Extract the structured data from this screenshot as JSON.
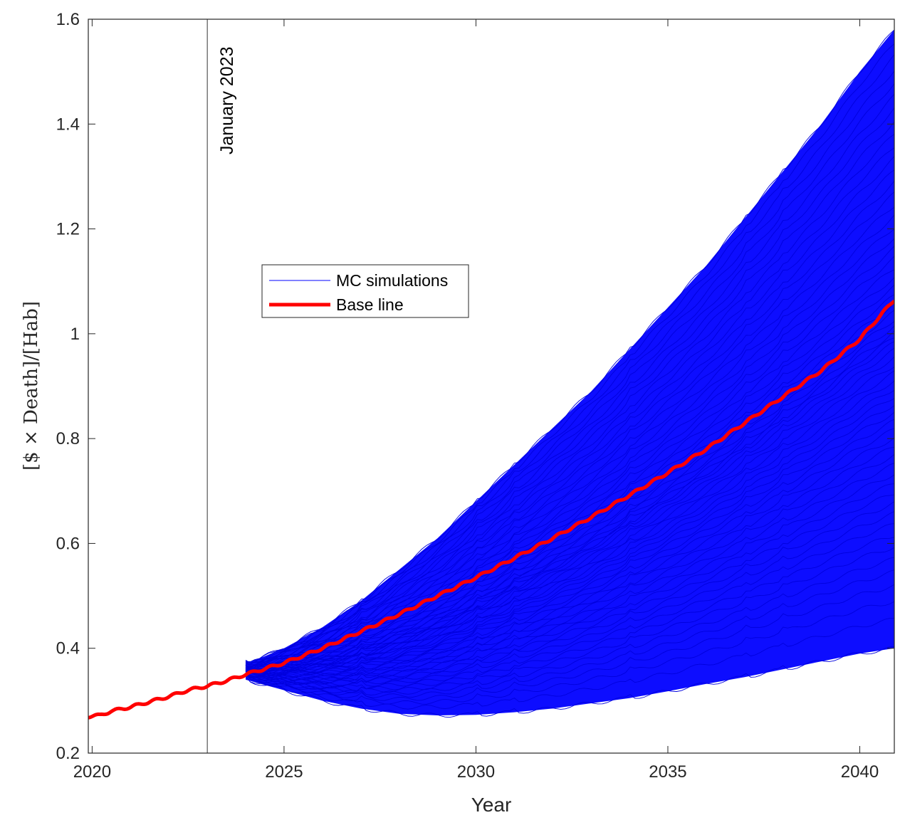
{
  "chart_data": {
    "type": "line",
    "title": "",
    "xlabel": "Year",
    "ylabel": "[$ × Death]/[Hab]",
    "xlim": [
      2019.9,
      2040.9
    ],
    "ylim": [
      0.2,
      1.6
    ],
    "x_ticks": [
      2020,
      2025,
      2030,
      2035,
      2040
    ],
    "x_tick_labels": [
      "2020",
      "2025",
      "2030",
      "2035",
      "2040"
    ],
    "y_ticks": [
      0.2,
      0.4,
      0.6,
      0.8,
      1.0,
      1.2,
      1.4,
      1.6
    ],
    "y_tick_labels": [
      "0.2",
      "0.4",
      "0.6",
      "0.8",
      "1",
      "1.2",
      "1.4",
      "1.6"
    ],
    "grid": false,
    "legend_position": "upper-left-center",
    "annotation": {
      "text": "January 2023",
      "x": 2023.0
    },
    "series": [
      {
        "name": "MC simulations",
        "color": "#0000ff",
        "kind": "envelope",
        "x": [
          2024.0,
          2025,
          2026,
          2027,
          2028,
          2029,
          2030,
          2031,
          2032,
          2033,
          2034,
          2035,
          2036,
          2037,
          2038,
          2039,
          2040,
          2040.9
        ],
        "upper": [
          0.37,
          0.4,
          0.44,
          0.49,
          0.55,
          0.61,
          0.68,
          0.75,
          0.82,
          0.89,
          0.97,
          1.05,
          1.13,
          1.22,
          1.31,
          1.4,
          1.5,
          1.58
        ],
        "lower": [
          0.34,
          0.32,
          0.3,
          0.285,
          0.275,
          0.272,
          0.273,
          0.278,
          0.285,
          0.295,
          0.305,
          0.318,
          0.332,
          0.345,
          0.36,
          0.375,
          0.39,
          0.4
        ]
      },
      {
        "name": "Base line",
        "color": "#ff0000",
        "x": [
          2019.9,
          2020.2,
          2020.5,
          2021,
          2021.5,
          2022,
          2022.5,
          2023,
          2023.5,
          2024,
          2025,
          2026,
          2027,
          2028,
          2029,
          2030,
          2031,
          2032,
          2033,
          2034,
          2035,
          2036,
          2037,
          2038,
          2039,
          2040,
          2040.9
        ],
        "values": [
          0.27,
          0.272,
          0.28,
          0.288,
          0.298,
          0.308,
          0.32,
          0.328,
          0.338,
          0.35,
          0.372,
          0.4,
          0.432,
          0.465,
          0.5,
          0.535,
          0.572,
          0.61,
          0.65,
          0.692,
          0.735,
          0.78,
          0.83,
          0.88,
          0.93,
          0.99,
          1.065
        ]
      }
    ]
  }
}
